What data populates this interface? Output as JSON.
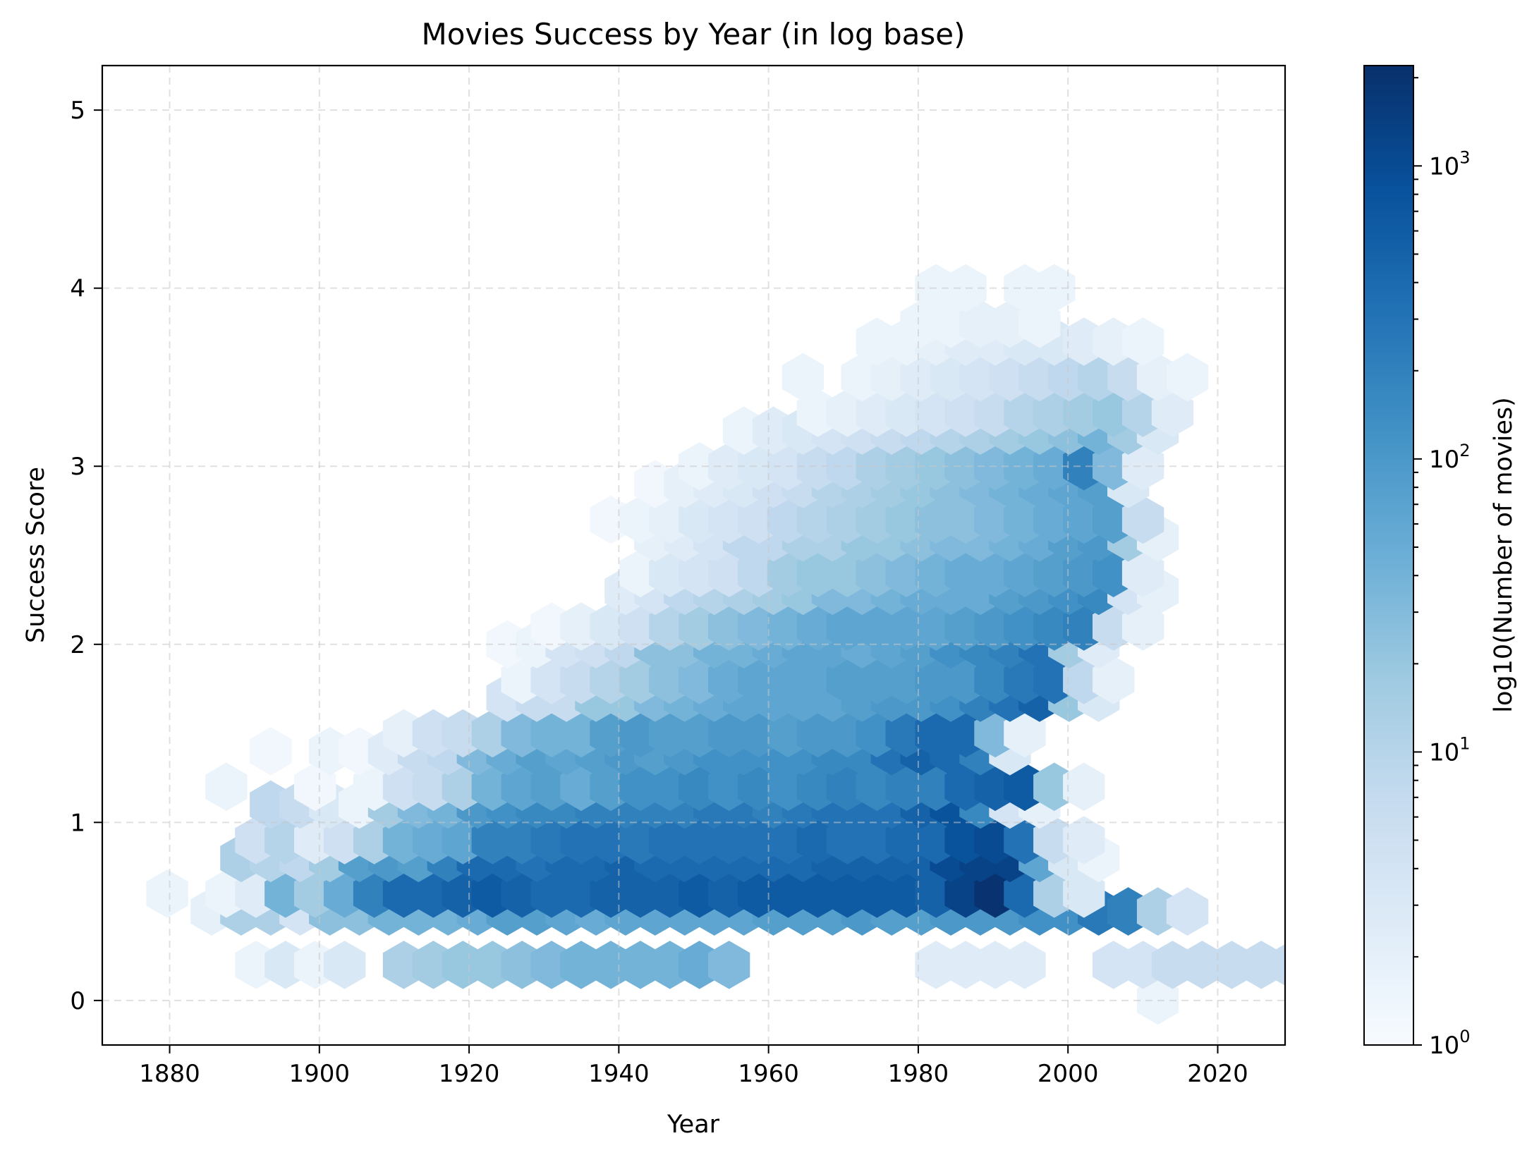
{
  "chart_data": {
    "type": "hexbin",
    "title": "Movies Success by Year (in log base)",
    "xlabel": "Year",
    "ylabel": "Success Score",
    "xlim": [
      1871,
      2029
    ],
    "ylim": [
      -0.25,
      5.25
    ],
    "x_ticks": [
      "1880",
      "1900",
      "1920",
      "1940",
      "1960",
      "1980",
      "2000",
      "2020"
    ],
    "y_ticks": [
      "0",
      "1",
      "2",
      "3",
      "4",
      "5"
    ],
    "grid": true,
    "colormap": "Blues",
    "colorbar": {
      "label": "log10(Number of movies)",
      "scale": "log",
      "range": [
        1,
        2200
      ],
      "ticks": [
        {
          "value": 1,
          "base": "10",
          "exp": "0"
        },
        {
          "value": 10,
          "base": "10",
          "exp": "1"
        },
        {
          "value": 100,
          "base": "10",
          "exp": "2"
        },
        {
          "value": 1000,
          "base": "10",
          "exp": "3"
        }
      ]
    },
    "hex_grid": {
      "x_step": 3.95,
      "y_step": 0.2,
      "x0": 1877.7,
      "y0": 0.0
    },
    "rows": [
      {
        "row": 0,
        "y": 0.0,
        "start": 34,
        "log_counts": [
          0.2,
          0,
          0,
          0,
          0,
          0.2,
          0,
          0.3,
          0.1,
          0,
          0,
          0,
          0.3,
          0.2
        ]
      },
      {
        "row": 1,
        "y": 0.2,
        "start": 16,
        "log_counts": [
          0.2,
          0,
          0,
          0,
          0,
          0,
          0,
          0,
          0,
          0,
          0.4,
          0.4,
          0.4,
          0.4,
          0,
          0,
          0.6,
          0.6,
          0.8,
          0.8,
          0.8,
          0.8,
          0.8,
          0.6,
          0.8,
          0.7,
          0.6,
          0.8,
          0.8,
          0.9,
          0.8,
          0.6,
          0.3
        ]
      },
      {
        "row": 1,
        "y": 0.2,
        "start": 3,
        "log_counts": [
          0.2,
          0.5,
          0.2,
          0.5,
          0,
          1.1,
          1.2,
          1.3,
          1.3,
          1.4,
          1.5,
          1.6,
          1.6,
          1.6,
          1.6,
          1.7,
          1.5
        ]
      },
      {
        "row": 2,
        "y": 0.5,
        "start": 2,
        "log_counts": [
          0.3,
          1.1,
          1.1,
          0.6,
          1.4,
          1.4,
          1.6,
          1.6,
          1.6,
          1.7,
          1.9,
          1.9,
          1.8,
          1.7,
          1.8,
          1.8,
          1.8,
          1.8,
          1.8,
          1.9,
          1.9,
          1.9,
          2.0,
          1.9,
          1.9,
          2.0,
          2.0,
          2.0,
          2.1,
          2.1,
          2.4,
          2.3,
          1.1,
          0.6
        ]
      },
      {
        "row": 3,
        "y": 0.6,
        "start": 0,
        "log_counts": [
          0.2,
          0,
          0.2,
          0.4,
          1.6,
          1.2,
          1.7,
          2.3,
          2.6,
          2.6,
          2.7,
          2.8,
          2.7,
          2.6,
          2.6,
          2.7,
          2.7,
          2.7,
          2.8,
          2.7,
          2.8,
          2.8,
          2.8,
          2.8,
          2.8,
          2.8,
          2.7,
          3.1,
          3.3,
          2.6,
          1.1,
          0.5
        ]
      },
      {
        "row": 4,
        "y": 0.8,
        "start": 3,
        "log_counts": [
          1.1,
          1.0,
          0.9,
          1.2,
          1.9,
          2.0,
          1.9,
          2.3,
          2.6,
          2.6,
          2.5,
          2.6,
          2.6,
          2.7,
          2.6,
          2.6,
          2.6,
          2.6,
          2.6,
          2.6,
          2.7,
          2.7,
          2.7,
          2.7,
          3.0,
          3.1,
          3.1,
          1.8,
          0.5,
          0.2
        ]
      },
      {
        "row": 5,
        "y": 0.9,
        "start": 3,
        "log_counts": [
          0.7,
          1.0,
          0.4,
          0.7,
          1.1,
          1.6,
          1.7,
          1.8,
          2.3,
          2.3,
          2.4,
          2.5,
          2.5,
          2.4,
          2.5,
          2.5,
          2.5,
          2.5,
          2.5,
          2.6,
          2.5,
          2.5,
          2.6,
          2.6,
          2.9,
          3.0,
          2.5,
          0.8,
          0.4
        ]
      },
      {
        "row": 6,
        "y": 1.1,
        "start": 4,
        "log_counts": [
          0.9,
          0.8,
          0.5,
          0.2,
          1.2,
          1.5,
          1.6,
          2.0,
          2.1,
          2.2,
          2.2,
          2.3,
          2.3,
          2.3,
          2.3,
          2.4,
          2.4,
          2.3,
          2.4,
          2.5,
          2.5,
          2.5,
          2.7,
          2.9,
          2.2,
          0.6,
          0.3
        ]
      },
      {
        "row": 7,
        "y": 1.2,
        "start": 2,
        "log_counts": [
          0.2,
          0,
          0,
          0.1,
          0,
          0.2,
          0.7,
          0.8,
          1.1,
          1.6,
          1.8,
          1.9,
          1.7,
          1.9,
          2.1,
          2.1,
          2.2,
          2.1,
          2.2,
          2.1,
          2.2,
          2.3,
          2.2,
          2.3,
          2.3,
          2.6,
          2.7,
          2.8,
          1.3,
          0.3
        ]
      },
      {
        "row": 8,
        "y": 1.4,
        "start": 4,
        "log_counts": [
          0.1,
          0,
          0.2,
          0.1,
          0.4,
          0.8,
          0.9,
          1.5,
          1.7,
          1.9,
          1.8,
          1.9,
          2.0,
          1.9,
          2.0,
          2.1,
          2.1,
          2.1,
          2.1,
          2.2,
          2.2,
          2.5,
          2.7,
          2.6,
          2.3,
          0.5
        ]
      },
      {
        "row": 9,
        "y": 1.5,
        "start": 8,
        "log_counts": [
          0.3,
          0.7,
          0.8,
          1.1,
          1.5,
          1.6,
          1.6,
          1.9,
          2.0,
          1.9,
          1.9,
          2.0,
          2.0,
          1.9,
          2.0,
          2.0,
          2.1,
          2.4,
          2.6,
          2.6,
          1.5,
          0.3
        ]
      },
      {
        "row": 10,
        "y": 1.7,
        "start": 12,
        "log_counts": [
          0.6,
          0.8,
          0.8,
          1.3,
          1.3,
          1.5,
          1.6,
          1.7,
          1.8,
          1.8,
          1.8,
          1.8,
          1.9,
          2.0,
          2.0,
          2.1,
          2.3,
          2.5,
          2.7,
          1.3,
          0.5
        ]
      },
      {
        "row": 11,
        "y": 1.8,
        "start": 12,
        "log_counts": [
          0.2,
          0.6,
          0.8,
          1.0,
          1.2,
          1.4,
          1.5,
          1.7,
          1.8,
          1.8,
          1.8,
          1.9,
          1.9,
          1.9,
          2.0,
          2.0,
          2.2,
          2.4,
          2.5,
          0.9,
          0.3
        ]
      },
      {
        "row": 12,
        "y": 2.0,
        "start": 12,
        "log_counts": [
          0.1,
          0.2,
          0.6,
          0.7,
          0.9,
          1.4,
          1.4,
          1.6,
          1.6,
          1.7,
          1.8,
          1.8,
          1.7,
          1.8,
          1.9,
          2.1,
          2.2,
          2.3,
          2.5,
          1.2,
          0.4
        ]
      },
      {
        "row": 13,
        "y": 2.1,
        "start": 13,
        "log_counts": [
          0.1,
          0.3,
          0.5,
          0.7,
          1.0,
          1.2,
          1.4,
          1.5,
          1.6,
          1.7,
          1.8,
          1.8,
          1.8,
          1.8,
          1.9,
          2.0,
          2.1,
          2.2,
          2.3,
          0.8,
          0.3
        ]
      },
      {
        "row": 14,
        "y": 2.3,
        "start": 16,
        "log_counts": [
          0.4,
          0.6,
          0.9,
          1.0,
          1.1,
          1.2,
          1.3,
          1.5,
          1.5,
          1.6,
          1.7,
          1.7,
          1.7,
          1.9,
          2.0,
          2.1,
          2.2,
          0.6,
          0.3
        ]
      },
      {
        "row": 15,
        "y": 2.4,
        "start": 16,
        "log_counts": [
          0.2,
          0.5,
          0.6,
          0.7,
          0.9,
          1.2,
          1.3,
          1.3,
          1.4,
          1.5,
          1.6,
          1.7,
          1.7,
          1.8,
          1.9,
          2.0,
          2.1,
          0.4
        ]
      },
      {
        "row": 16,
        "y": 2.6,
        "start": 17,
        "log_counts": [
          0.3,
          0.4,
          0.6,
          0.9,
          0.9,
          1.1,
          1.1,
          1.3,
          1.3,
          1.4,
          1.5,
          1.5,
          1.6,
          1.7,
          1.9,
          2.0,
          1.2,
          0.3
        ]
      },
      {
        "row": 17,
        "y": 2.7,
        "start": 15,
        "log_counts": [
          0.1,
          0.2,
          0.3,
          0.5,
          0.6,
          0.7,
          0.9,
          1.0,
          1.1,
          1.2,
          1.3,
          1.4,
          1.4,
          1.5,
          1.6,
          1.7,
          1.8,
          1.9,
          0.8
        ]
      },
      {
        "row": 18,
        "y": 2.9,
        "start": 17,
        "log_counts": [
          0.1,
          0.3,
          0.4,
          0.5,
          0.7,
          0.8,
          1.0,
          1.1,
          1.2,
          1.3,
          1.4,
          1.5,
          1.6,
          1.7,
          1.8,
          1.9,
          0.5
        ]
      },
      {
        "row": 19,
        "y": 3.0,
        "start": 18,
        "log_counts": [
          0.2,
          0.4,
          0.5,
          0.6,
          0.8,
          0.9,
          1.1,
          1.2,
          1.3,
          1.4,
          1.5,
          1.6,
          1.7,
          2.3,
          1.5,
          0.4
        ]
      },
      {
        "row": 20,
        "y": 3.2,
        "start": 20,
        "log_counts": [
          0.2,
          0.4,
          0.5,
          0.6,
          0.7,
          0.8,
          0.9,
          1.0,
          1.1,
          1.2,
          1.3,
          1.4,
          1.6,
          1.2,
          0.5
        ]
      },
      {
        "row": 21,
        "y": 3.3,
        "start": 22,
        "log_counts": [
          0.2,
          0.3,
          0.4,
          0.5,
          0.6,
          0.7,
          0.8,
          1.0,
          1.1,
          1.2,
          1.3,
          1.0,
          0.4
        ]
      },
      {
        "row": 22,
        "y": 3.5,
        "start": 22,
        "log_counts": [
          0.2,
          0,
          0.2,
          0.3,
          0.4,
          0.5,
          0.6,
          0.7,
          0.8,
          0.9,
          1.0,
          0.8,
          0.3,
          0.2
        ]
      },
      {
        "row": 23,
        "y": 3.7,
        "start": 24,
        "log_counts": [
          0.2,
          0.2,
          0.3,
          0.4,
          0.4,
          0.5,
          0.5,
          0.4,
          0.3,
          0.2
        ]
      },
      {
        "row": 24,
        "y": 3.8,
        "start": 26,
        "log_counts": [
          0.2,
          0.2,
          0.3,
          0.3,
          0.2
        ]
      },
      {
        "row": 25,
        "y": 4.0,
        "start": 26,
        "log_counts": [
          0.2,
          0.2,
          0,
          0.2,
          0.2
        ]
      }
    ]
  }
}
